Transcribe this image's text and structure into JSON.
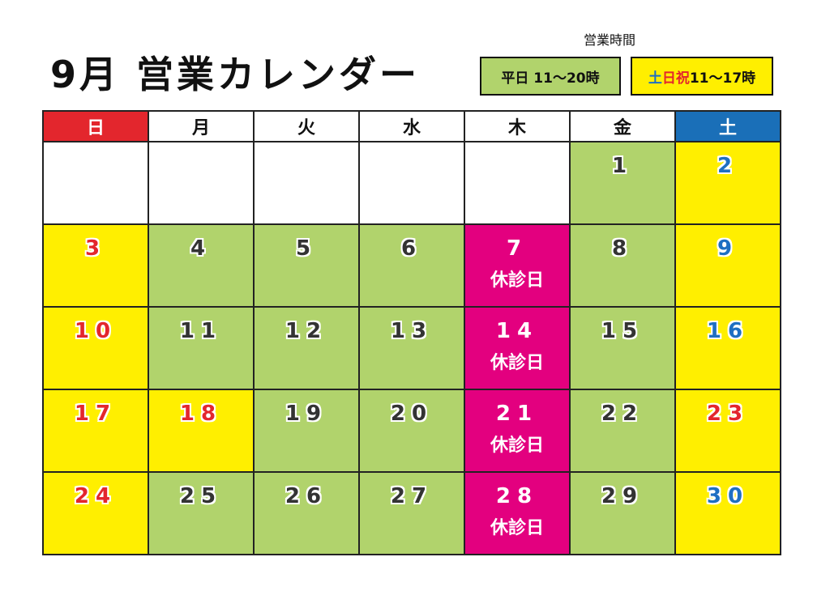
{
  "title": "9月 営業カレンダー",
  "hours": {
    "caption": "営業時間",
    "weekday": "平日 11〜20時",
    "holiday_prefix_sat": "土",
    "holiday_prefix_sun_hol": "日祝",
    "holiday_hours": " 11〜17時"
  },
  "weekdays": [
    "日",
    "月",
    "火",
    "水",
    "木",
    "金",
    "土"
  ],
  "closed_label": "休診日",
  "colors": {
    "green": "#b1d36c",
    "yellow": "#ffef00",
    "pink": "#e3007f",
    "sunday_red": "#e3262d",
    "saturday_blue": "#1a6fb8"
  },
  "weeks": [
    [
      {
        "day": "",
        "bg": "empty"
      },
      {
        "day": "",
        "bg": "empty"
      },
      {
        "day": "",
        "bg": "empty"
      },
      {
        "day": "",
        "bg": "empty"
      },
      {
        "day": "",
        "bg": "empty"
      },
      {
        "day": "1",
        "bg": "green",
        "color": "dark"
      },
      {
        "day": "2",
        "bg": "yellow",
        "color": "blue"
      }
    ],
    [
      {
        "day": "3",
        "bg": "yellow",
        "color": "red"
      },
      {
        "day": "4",
        "bg": "green",
        "color": "dark"
      },
      {
        "day": "5",
        "bg": "green",
        "color": "dark"
      },
      {
        "day": "6",
        "bg": "green",
        "color": "dark"
      },
      {
        "day": "7",
        "bg": "pink",
        "color": "white",
        "closed": true
      },
      {
        "day": "8",
        "bg": "green",
        "color": "dark"
      },
      {
        "day": "9",
        "bg": "yellow",
        "color": "blue"
      }
    ],
    [
      {
        "day": "10",
        "bg": "yellow",
        "color": "red"
      },
      {
        "day": "11",
        "bg": "green",
        "color": "dark"
      },
      {
        "day": "12",
        "bg": "green",
        "color": "dark"
      },
      {
        "day": "13",
        "bg": "green",
        "color": "dark"
      },
      {
        "day": "14",
        "bg": "pink",
        "color": "white",
        "closed": true
      },
      {
        "day": "15",
        "bg": "green",
        "color": "dark"
      },
      {
        "day": "16",
        "bg": "yellow",
        "color": "blue"
      }
    ],
    [
      {
        "day": "17",
        "bg": "yellow",
        "color": "red"
      },
      {
        "day": "18",
        "bg": "yellow",
        "color": "red"
      },
      {
        "day": "19",
        "bg": "green",
        "color": "dark"
      },
      {
        "day": "20",
        "bg": "green",
        "color": "dark"
      },
      {
        "day": "21",
        "bg": "pink",
        "color": "white",
        "closed": true
      },
      {
        "day": "22",
        "bg": "green",
        "color": "dark"
      },
      {
        "day": "23",
        "bg": "yellow",
        "color": "red"
      }
    ],
    [
      {
        "day": "24",
        "bg": "yellow",
        "color": "red"
      },
      {
        "day": "25",
        "bg": "green",
        "color": "dark"
      },
      {
        "day": "26",
        "bg": "green",
        "color": "dark"
      },
      {
        "day": "27",
        "bg": "green",
        "color": "dark"
      },
      {
        "day": "28",
        "bg": "pink",
        "color": "white",
        "closed": true
      },
      {
        "day": "29",
        "bg": "green",
        "color": "dark"
      },
      {
        "day": "30",
        "bg": "yellow",
        "color": "blue"
      }
    ]
  ]
}
